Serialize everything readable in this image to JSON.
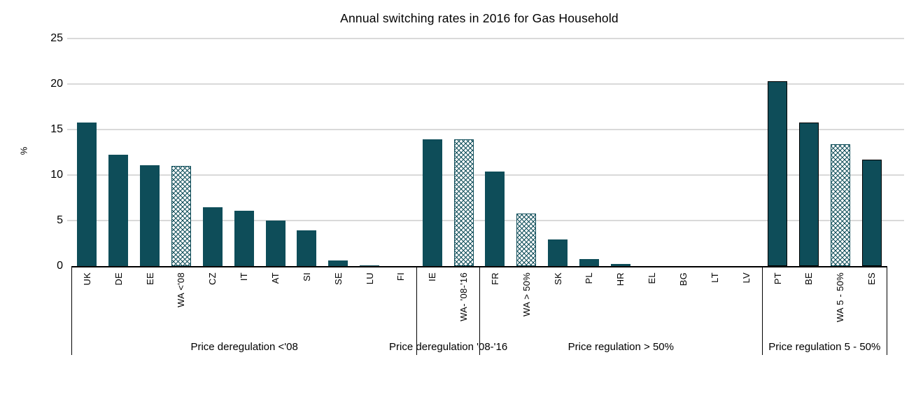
{
  "chart_data": {
    "type": "bar",
    "title": "Annual switching rates in 2016 for Gas Household",
    "ylabel": "%",
    "ylim": [
      0,
      25
    ],
    "yticks": [
      0,
      5,
      10,
      15,
      20,
      25
    ],
    "grid": true,
    "legend": "none",
    "colors": {
      "bar": "#0E4D59",
      "grid": "#D9D9D9",
      "axis": "#000000"
    },
    "groups": [
      {
        "label": "Price deregulation <'08",
        "bars": [
          {
            "category": "UK",
            "value": 15.8,
            "style": "solid"
          },
          {
            "category": "DE",
            "value": 12.2,
            "style": "solid"
          },
          {
            "category": "EE",
            "value": 11.1,
            "style": "solid"
          },
          {
            "category": "WA <'08",
            "value": 11.0,
            "style": "hatched"
          },
          {
            "category": "CZ",
            "value": 6.5,
            "style": "solid"
          },
          {
            "category": "IT",
            "value": 6.1,
            "style": "solid"
          },
          {
            "category": "AT",
            "value": 5.0,
            "style": "solid"
          },
          {
            "category": "SI",
            "value": 3.9,
            "style": "solid"
          },
          {
            "category": "SE",
            "value": 0.6,
            "style": "solid"
          },
          {
            "category": "LU",
            "value": 0.1,
            "style": "solid"
          },
          {
            "category": "FI",
            "value": 0,
            "style": "solid"
          }
        ]
      },
      {
        "label": "Price deregulation '08-'16",
        "bars": [
          {
            "category": "IE",
            "value": 13.9,
            "style": "solid"
          },
          {
            "category": "WA- '08-'16",
            "value": 13.9,
            "style": "hatched"
          }
        ]
      },
      {
        "label": "Price regulation > 50%",
        "bars": [
          {
            "category": "FR",
            "value": 10.4,
            "style": "solid"
          },
          {
            "category": "WA > 50%",
            "value": 5.8,
            "style": "hatched"
          },
          {
            "category": "SK",
            "value": 2.9,
            "style": "solid"
          },
          {
            "category": "PL",
            "value": 0.8,
            "style": "solid"
          },
          {
            "category": "HR",
            "value": 0.2,
            "style": "solid"
          },
          {
            "category": "EL",
            "value": 0,
            "style": "solid"
          },
          {
            "category": "BG",
            "value": 0,
            "style": "solid"
          },
          {
            "category": "LT",
            "value": 0,
            "style": "solid"
          },
          {
            "category": "LV",
            "value": 0,
            "style": "solid"
          }
        ]
      },
      {
        "label": "Price regulation 5 - 50%",
        "bars": [
          {
            "category": "PT",
            "value": 20.3,
            "style": "solid-outlined"
          },
          {
            "category": "BE",
            "value": 15.8,
            "style": "solid-outlined"
          },
          {
            "category": "WA 5 - 50%",
            "value": 13.4,
            "style": "hatched"
          },
          {
            "category": "ES",
            "value": 11.7,
            "style": "solid-outlined"
          }
        ]
      }
    ]
  }
}
